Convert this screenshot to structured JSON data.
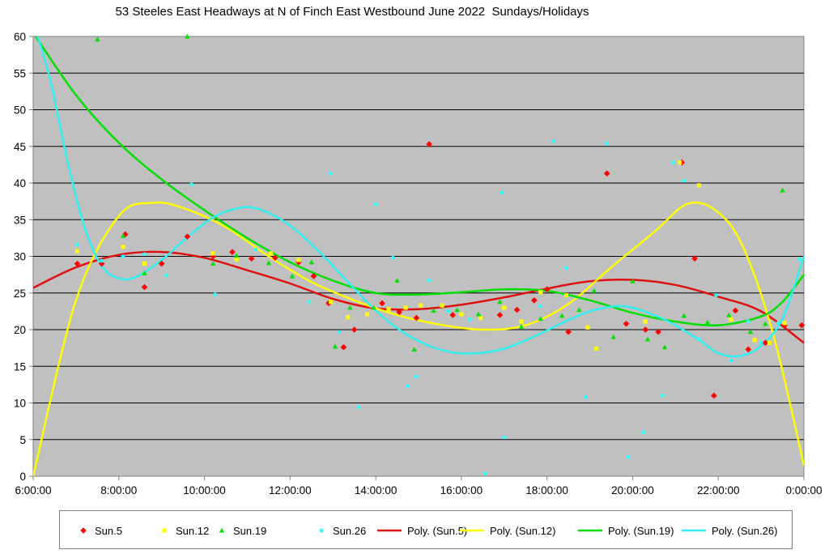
{
  "chart_data": {
    "type": "scatter",
    "title": "53 Steeles East Headways at N of Finch East Westbound June 2022  Sundays/Holidays",
    "xlabel": "",
    "ylabel": "",
    "x_unit": "hours after 6:00",
    "xlim": [
      0,
      18
    ],
    "ylim": [
      0,
      60
    ],
    "x_ticks": [
      "6:00:00",
      "8:00:00",
      "10:00:00",
      "12:00:00",
      "14:00:00",
      "16:00:00",
      "18:00:00",
      "20:00:00",
      "22:00:00",
      "0:00:00"
    ],
    "y_ticks": [
      0,
      5,
      10,
      15,
      20,
      25,
      30,
      35,
      40,
      45,
      50,
      55,
      60
    ],
    "grid": "horizontal",
    "plot_background": "#C0C0C0",
    "legend_position": "bottom",
    "series": [
      {
        "name": "Sun.5",
        "marker": "diamond",
        "color": "#FF0000",
        "x": [
          1.03,
          1.6,
          2.15,
          2.6,
          3.0,
          3.6,
          4.2,
          4.65,
          5.1,
          5.65,
          6.2,
          6.55,
          6.9,
          7.25,
          7.5,
          8.15,
          8.55,
          8.95,
          9.25,
          9.8,
          10.9,
          11.3,
          11.7,
          12.0,
          12.5,
          13.4,
          13.85,
          14.3,
          14.6,
          15.15,
          15.45,
          15.9,
          16.4,
          16.7,
          17.1,
          17.55,
          17.95
        ],
        "y": [
          29,
          29,
          33,
          25.8,
          29,
          32.7,
          30,
          30.6,
          29.7,
          29.8,
          29.2,
          27.3,
          23.6,
          17.6,
          20,
          23.6,
          22.4,
          21.6,
          45.3,
          22,
          22,
          22.7,
          24,
          25.5,
          19.7,
          41.3,
          20.8,
          20,
          19.7,
          42.8,
          29.7,
          11,
          22.6,
          17.3,
          18.2,
          20.6,
          20.6
        ]
      },
      {
        "name": "Sun.12",
        "marker": "square",
        "color": "#FFFF00",
        "x": [
          1.03,
          2.1,
          2.6,
          4.2,
          4.75,
          5.55,
          6.2,
          6.95,
          7.35,
          7.8,
          8.3,
          8.7,
          9.05,
          9.55,
          10.0,
          10.45,
          11.0,
          11.4,
          11.85,
          12.45,
          12.95,
          13.15,
          14.3,
          15.1,
          15.55,
          16.3,
          16.85,
          17.2,
          17.55
        ],
        "y": [
          30.7,
          31.3,
          29,
          30.4,
          29.6,
          30.4,
          29.5,
          23.8,
          21.7,
          22.1,
          22.8,
          23,
          23.3,
          23.3,
          22.1,
          21.6,
          23,
          21.1,
          25.1,
          24.7,
          20.3,
          17.4,
          21.1,
          42.8,
          39.7,
          21.4,
          18.6,
          18.2,
          20.9
        ]
      },
      {
        "name": "Sun.19",
        "marker": "triangle",
        "color": "#00E000",
        "x": [
          1.5,
          2.1,
          2.6,
          3.6,
          4.2,
          4.75,
          5.5,
          6.05,
          6.5,
          7.05,
          7.4,
          7.95,
          8.5,
          8.9,
          9.35,
          9.9,
          10.4,
          10.9,
          11.4,
          11.85,
          12.35,
          12.75,
          13.1,
          13.55,
          14.0,
          14.35,
          14.75,
          15.2,
          15.75,
          16.25,
          16.75,
          17.1,
          17.5
        ],
        "y": [
          59.6,
          32.8,
          27.7,
          60,
          29,
          30.1,
          29.1,
          27.3,
          29.2,
          17.7,
          23,
          23,
          26.7,
          17.3,
          22.6,
          22.7,
          22.1,
          23.8,
          20.4,
          21.5,
          21.9,
          22.7,
          25.3,
          19,
          26.6,
          18.7,
          17.6,
          21.9,
          21,
          22,
          19.7,
          20.8,
          39
        ]
      },
      {
        "name": "Sun.26",
        "marker": "circle",
        "color": "#33FFFF",
        "x": [
          1.03,
          1.6,
          2.1,
          2.6,
          3.1,
          3.7,
          4.25,
          5.2,
          6.45,
          6.95,
          7.15,
          7.6,
          8.0,
          8.4,
          8.75,
          8.95,
          9.25,
          9.7,
          10.2,
          10.55,
          10.95,
          11.0,
          11.85,
          12.15,
          12.45,
          12.9,
          13.4,
          13.9,
          14.25,
          14.7,
          14.95,
          15.2,
          15.55,
          15.95,
          16.3,
          16.7,
          17.0,
          17.4,
          17.9
        ],
        "y": [
          31.6,
          29.4,
          30,
          30.3,
          27.4,
          39.8,
          24.8,
          30.9,
          23.8,
          41.3,
          19.7,
          9.4,
          37.1,
          29.8,
          12.3,
          13.6,
          26.7,
          22.5,
          21.4,
          0.4,
          38.7,
          5.3,
          23.2,
          45.7,
          28.4,
          10.8,
          45.4,
          2.6,
          6,
          11,
          42.8,
          40.3,
          18.7,
          24.7,
          15.8,
          21.1,
          18.2,
          20.9,
          29.6
        ]
      }
    ],
    "trendlines": [
      {
        "name": "Poly. (Sun.5)",
        "color": "#DD1111",
        "width": 2.5,
        "x": [
          0,
          1,
          2,
          3,
          4,
          5,
          6,
          7,
          8,
          9,
          10,
          11,
          12,
          13,
          14,
          15,
          16,
          17,
          18
        ],
        "y": [
          25.7,
          28.5,
          30.2,
          30.6,
          29.8,
          28.1,
          26.3,
          24.2,
          22.9,
          22.8,
          23.4,
          24.4,
          25.6,
          26.6,
          26.8,
          26.1,
          24.5,
          22.5,
          18.2
        ]
      },
      {
        "name": "Poly. (Sun.12)",
        "color": "#FFFF00",
        "width": 2.5,
        "x": [
          0,
          1,
          2,
          2.8,
          3.5,
          4.5,
          5.5,
          6.5,
          7.5,
          8.5,
          9.5,
          10.5,
          11.5,
          12.5,
          13.5,
          14.5,
          15.3,
          16,
          16.6,
          17.3,
          18
        ],
        "y": [
          0,
          24,
          35.5,
          37.3,
          36.6,
          34,
          30,
          26.5,
          24,
          22,
          20.7,
          20,
          20.6,
          23.5,
          28.5,
          33.3,
          37.2,
          36,
          31,
          19,
          1.5
        ]
      },
      {
        "name": "Poly. (Sun.19)",
        "color": "#00DD00",
        "width": 2.5,
        "x": [
          0,
          1,
          2,
          3,
          4,
          5,
          6,
          7,
          8,
          9,
          10,
          11,
          12,
          13,
          14,
          15,
          16,
          17,
          17.5,
          18
        ],
        "y": [
          60.5,
          52,
          45.5,
          40.5,
          36.3,
          32.5,
          29.2,
          26.7,
          25,
          24.8,
          25.1,
          25.5,
          25.3,
          24,
          22.3,
          21.1,
          20.6,
          21.8,
          23.8,
          27.5
        ]
      },
      {
        "name": "Poly. (Sun.26)",
        "color": "#33EEEE",
        "width": 2.5,
        "x": [
          0,
          0.4,
          0.8,
          1.2,
          1.6,
          2,
          2.4,
          3,
          3.6,
          4.2,
          4.8,
          5.3,
          6,
          6.7,
          7.4,
          8,
          8.6,
          9.2,
          9.8,
          10.4,
          11,
          11.6,
          12,
          12.5,
          13,
          13.6,
          14,
          14.5,
          15,
          15.6,
          16,
          16.5,
          17,
          17.5,
          18
        ],
        "y": [
          62,
          54,
          43,
          34,
          28.7,
          27,
          27.2,
          29.5,
          32.6,
          35.3,
          36.6,
          36.4,
          34.2,
          30.5,
          26.2,
          22.6,
          19.8,
          17.9,
          16.9,
          16.8,
          17.4,
          18.8,
          19.9,
          21.3,
          22.5,
          23.2,
          23,
          22,
          20.6,
          18.4,
          16.8,
          16.4,
          17.8,
          21.5,
          30
        ]
      }
    ],
    "legend": [
      "Sun.5",
      "Sun.12",
      "Sun.19",
      "Sun.26",
      "Poly. (Sun.5)",
      "Poly. (Sun.12)",
      "Poly. (Sun.19)",
      "Poly. (Sun.26)"
    ]
  }
}
